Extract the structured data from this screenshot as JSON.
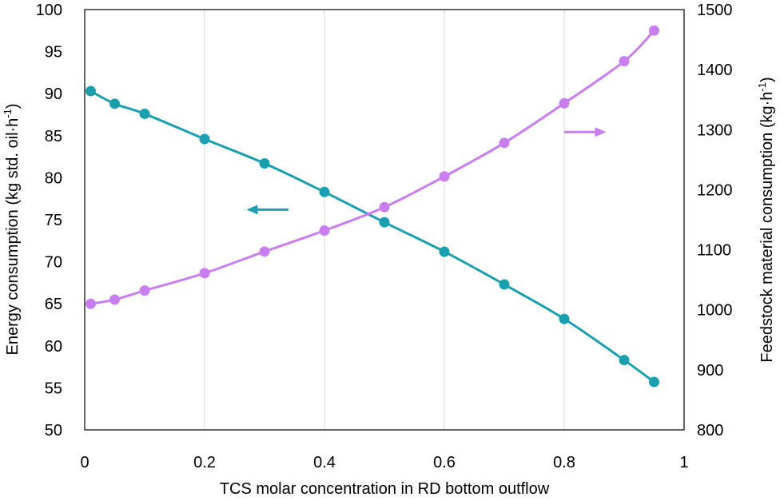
{
  "chart_data": {
    "type": "line",
    "xlabel": "TCS molar concentration in RD bottom outflow",
    "ylabel_left": {
      "main": "Energy consumption (kg std. oil·h",
      "sup": "-1",
      "end": ")"
    },
    "ylabel_right": {
      "main": "Feedstock material consumption (kg·h",
      "sup": "-1",
      "end": ")"
    },
    "xlim": [
      0,
      1
    ],
    "ylim_left": [
      50,
      100
    ],
    "ylim_right": [
      800,
      1500
    ],
    "x_ticks": [
      "0",
      "0.2",
      "0.4",
      "0.6",
      "0.8",
      "1"
    ],
    "y_ticks_left": [
      "50",
      "55",
      "60",
      "65",
      "70",
      "75",
      "80",
      "85",
      "90",
      "95",
      "100"
    ],
    "y_ticks_right": [
      "800",
      "900",
      "1000",
      "1100",
      "1200",
      "1300",
      "1400",
      "1500"
    ],
    "grid": "vertical",
    "series": [
      {
        "axis": "left",
        "color": "#1a9fae",
        "x": [
          0.01,
          0.05,
          0.1,
          0.2,
          0.3,
          0.4,
          0.5,
          0.6,
          0.7,
          0.8,
          0.9,
          0.95
        ],
        "y": [
          90.3,
          88.8,
          87.6,
          84.6,
          81.7,
          78.3,
          74.7,
          71.2,
          67.3,
          63.2,
          58.3,
          55.7
        ]
      },
      {
        "axis": "right",
        "color": "#c97ef0",
        "x": [
          0.01,
          0.05,
          0.1,
          0.2,
          0.3,
          0.4,
          0.5,
          0.6,
          0.7,
          0.8,
          0.9,
          0.95
        ],
        "y": [
          1010,
          1017,
          1032,
          1061,
          1097,
          1132,
          1171,
          1222,
          1278,
          1344,
          1414,
          1465
        ]
      }
    ],
    "annotations": [
      {
        "type": "arrow",
        "direction": "left",
        "series": 0
      },
      {
        "type": "arrow",
        "direction": "right",
        "series": 1
      }
    ]
  }
}
